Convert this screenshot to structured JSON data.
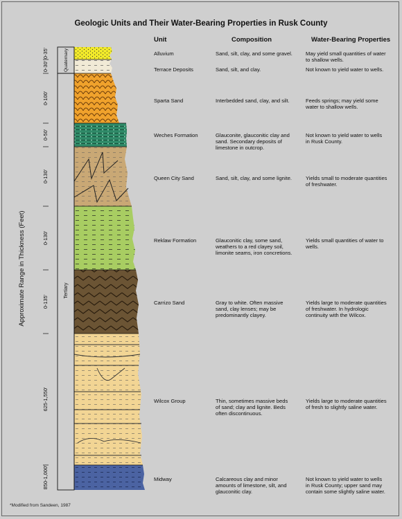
{
  "title": "Geologic Units and Their Water-Bearing Properties in Rusk County",
  "headers": {
    "unit": "Unit",
    "composition": "Composition",
    "properties": "Water-Bearing Properties"
  },
  "axis_label": "Approximate Range in Thickness (Feet)",
  "systems": {
    "quaternary": "Quaternary",
    "tertiary": "Tertiary"
  },
  "units": [
    {
      "name": "Alluvium",
      "thickness": "0-35'",
      "composition": "Sand, silt, clay, and some gravel.",
      "properties": "May yield small quantities of water to shallow wells."
    },
    {
      "name": "Terrace Deposits",
      "thickness": "0-30'",
      "composition": "Sand, silt, and clay.",
      "properties": "Not known to yield water to wells."
    },
    {
      "name": "Sparta Sand",
      "thickness": "0-100'",
      "composition": "Interbedded sand, clay, and silt.",
      "properties": "Feeds springs; may yield some water to shallow wells."
    },
    {
      "name": "Weches Formation",
      "thickness": "0-50'",
      "composition": "Glauconite, glauconitic clay and sand. Secondary deposits of limestone in outcrop.",
      "properties": "Not known to yield water to wells in Rusk County."
    },
    {
      "name": "Queen City Sand",
      "thickness": "0-130'",
      "composition": "Sand, silt, clay, and some lignite.",
      "properties": "Yields small to moderate quantities of freshwater."
    },
    {
      "name": "Reklaw Formation",
      "thickness": "0-130'",
      "composition": "Glauconitic clay, some sand, weathers to a red clayey soil, limonite seams, iron concretions.",
      "properties": "Yields small quantities of water to wells."
    },
    {
      "name": "Carrizo Sand",
      "thickness": "0-135'",
      "composition": "Gray to white. Often massive sand, clay lenses; may be predominantly clayey.",
      "properties": "Yields large to moderate quantities of freshwater. In hydrologic continuity with the Wilcox."
    },
    {
      "name": "Wilcox Group",
      "thickness": "625-1,550'",
      "composition": "Thin, sometimes massive beds of sand; clay and lignite. Beds often discontinuous.",
      "properties": "Yields large to moderate quantities of fresh to slightly saline water."
    },
    {
      "name": "Midway",
      "thickness": "850-1,000'",
      "composition": "Calcareous clay and minor amounts of limestone, silt, and glauconitic clay.",
      "properties": "Not known to yield water to wells in Rusk County; upper sand may contain some slightly saline water."
    }
  ],
  "footnote": "*Modified from Sandeen, 1987",
  "colors": {
    "background": "#cfcfcf",
    "alluvium": "#f2ea2a",
    "terrace": "#f1ead6",
    "sparta": "#f0a22c",
    "weches": "#2f8a68",
    "queen_city": "#c9a875",
    "reklaw": "#a8cd62",
    "carrizo": "#6b5434",
    "wilcox": "#f2d594",
    "midway": "#4b63a2"
  }
}
